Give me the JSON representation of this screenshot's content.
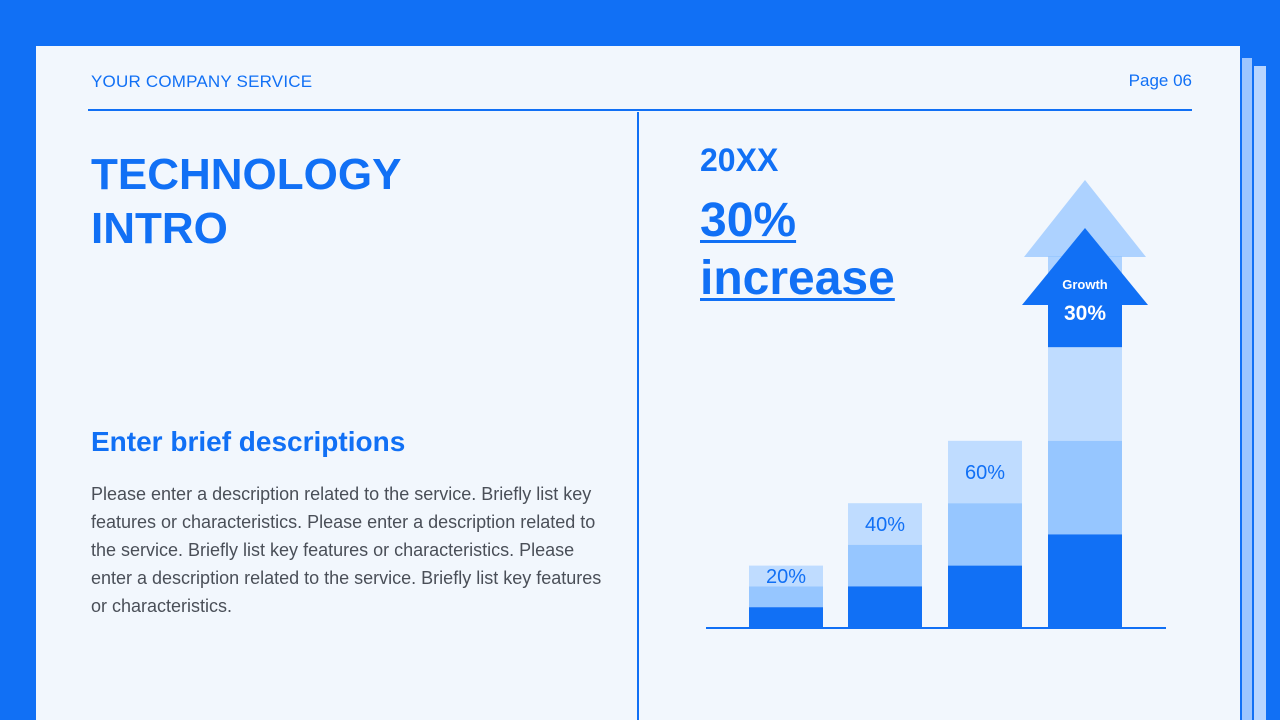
{
  "header": {
    "company": "YOUR COMPANY SERVICE",
    "page": "Page 06"
  },
  "left": {
    "title_line1": "TECHNOLOGY",
    "title_line2": "INTRO",
    "subheading": "Enter brief descriptions",
    "description": "Please enter a description related to the service. Briefly list key features or characteristics. Please enter a description related to the service. Briefly list key features or characteristics. Please enter a description related to the service. Briefly list key features or characteristics."
  },
  "right": {
    "year": "20XX",
    "big_value": "30%",
    "big_label": "increase"
  },
  "colors": {
    "accent": "#1170F5",
    "light": "#BFDCFF",
    "mid": "#96C6FF",
    "page_bg": "#F2F7FD"
  },
  "chart_data": {
    "type": "bar",
    "categories": [
      "",
      "",
      "",
      ""
    ],
    "values": [
      20,
      40,
      60,
      90
    ],
    "data_labels": [
      "20%",
      "40%",
      "60%",
      ""
    ],
    "arrow_label": "Growth",
    "arrow_value": "30%",
    "title": "",
    "xlabel": "",
    "ylabel": "",
    "ylim": [
      0,
      100
    ],
    "grid": false
  }
}
